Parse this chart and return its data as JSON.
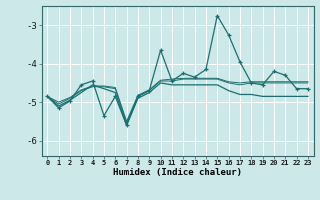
{
  "xlabel": "Humidex (Indice chaleur)",
  "background_color": "#cce8e8",
  "grid_color": "#ffffff",
  "line_color": "#1a7070",
  "xlim": [
    -0.5,
    23.5
  ],
  "ylim": [
    -6.4,
    -2.5
  ],
  "yticks": [
    -6,
    -5,
    -4,
    -3
  ],
  "xticks": [
    0,
    1,
    2,
    3,
    4,
    5,
    6,
    7,
    8,
    9,
    10,
    11,
    12,
    13,
    14,
    15,
    16,
    17,
    18,
    19,
    20,
    21,
    22,
    23
  ],
  "line1_x": [
    0,
    1,
    2,
    3,
    4,
    5,
    6,
    7,
    8,
    9,
    10,
    11,
    12,
    13,
    14,
    15,
    16,
    17,
    18,
    19,
    20,
    21,
    22,
    23
  ],
  "line1_y": [
    -4.85,
    -5.15,
    -4.97,
    -4.55,
    -4.45,
    -5.35,
    -4.85,
    -5.6,
    -4.85,
    -4.7,
    -3.65,
    -4.45,
    -4.25,
    -4.35,
    -4.15,
    -2.75,
    -3.25,
    -3.95,
    -4.5,
    -4.55,
    -4.2,
    -4.3,
    -4.65,
    -4.65
  ],
  "line2_x": [
    0,
    1,
    2,
    3,
    4,
    5,
    6,
    7,
    8,
    9,
    10,
    11,
    12,
    13,
    14,
    15,
    16,
    17,
    18,
    19,
    20,
    21,
    22,
    23
  ],
  "line2_y": [
    -4.85,
    -5.1,
    -4.95,
    -4.75,
    -4.55,
    -4.65,
    -4.75,
    -5.6,
    -4.9,
    -4.75,
    -4.5,
    -4.55,
    -4.55,
    -4.55,
    -4.55,
    -4.55,
    -4.7,
    -4.8,
    -4.8,
    -4.85,
    -4.85,
    -4.85,
    -4.85,
    -4.85
  ],
  "line3_x": [
    0,
    1,
    2,
    3,
    4,
    5,
    6,
    7,
    8,
    9,
    10,
    11,
    12,
    13,
    14,
    15,
    16,
    17,
    18,
    19,
    20,
    21,
    22,
    23
  ],
  "line3_y": [
    -4.85,
    -5.05,
    -4.9,
    -4.7,
    -4.6,
    -4.6,
    -4.65,
    -5.55,
    -4.85,
    -4.7,
    -4.45,
    -4.45,
    -4.4,
    -4.4,
    -4.4,
    -4.4,
    -4.5,
    -4.55,
    -4.5,
    -4.5,
    -4.5,
    -4.5,
    -4.5,
    -4.5
  ],
  "line4_x": [
    0,
    1,
    2,
    3,
    4,
    5,
    6,
    7,
    8,
    9,
    10,
    11,
    12,
    13,
    14,
    15,
    16,
    17,
    18,
    19,
    20,
    21,
    22,
    23
  ],
  "line4_y": [
    -4.85,
    -5.0,
    -4.88,
    -4.68,
    -4.58,
    -4.58,
    -4.62,
    -5.5,
    -4.82,
    -4.68,
    -4.43,
    -4.4,
    -4.38,
    -4.38,
    -4.38,
    -4.38,
    -4.47,
    -4.5,
    -4.47,
    -4.47,
    -4.47,
    -4.47,
    -4.47,
    -4.47
  ]
}
